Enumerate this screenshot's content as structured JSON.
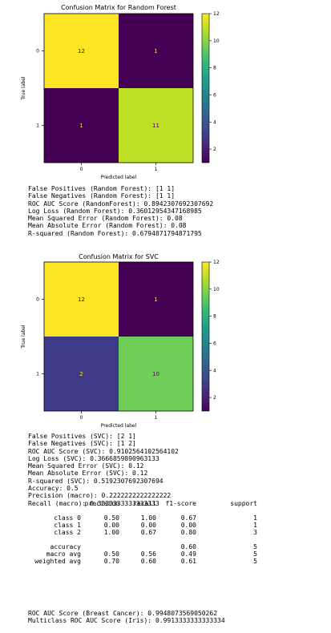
{
  "chart_data": [
    {
      "type": "heatmap",
      "title": "Confusion Matrix for Random Forest",
      "xlabel": "Predicted label",
      "ylabel": "True label",
      "x_ticks": [
        "0",
        "1"
      ],
      "y_ticks": [
        "0",
        "1"
      ],
      "matrix": [
        [
          12,
          1
        ],
        [
          1,
          11
        ]
      ],
      "cell_colors": [
        [
          "#fde725",
          "#440154"
        ],
        [
          "#440154",
          "#bddf26"
        ]
      ],
      "cell_text_colors": [
        [
          "#440154",
          "#fde725"
        ],
        [
          "#fde725",
          "#440154"
        ]
      ],
      "colorbar": {
        "min": 1,
        "max": 12,
        "ticks": [
          2,
          4,
          6,
          8,
          10,
          12
        ],
        "colormap": "viridis"
      }
    },
    {
      "type": "heatmap",
      "title": "Confusion Matrix for SVC",
      "xlabel": "Predicted label",
      "ylabel": "True label",
      "x_ticks": [
        "0",
        "1"
      ],
      "y_ticks": [
        "0",
        "1"
      ],
      "matrix": [
        [
          12,
          1
        ],
        [
          2,
          10
        ]
      ],
      "cell_colors": [
        [
          "#fde725",
          "#440154"
        ],
        [
          "#3e3a8a",
          "#6ece58"
        ]
      ],
      "cell_text_colors": [
        [
          "#440154",
          "#fde725"
        ],
        [
          "#fde725",
          "#440154"
        ]
      ],
      "colorbar": {
        "min": 1,
        "max": 12,
        "ticks": [
          2,
          4,
          6,
          8,
          10,
          12
        ],
        "colormap": "viridis"
      }
    }
  ],
  "output": {
    "rf_lines": [
      "False Positives (Random Forest): [1 1]",
      "False Negatives (Random Forest): [1 1]",
      "ROC AUC Score (RandomForest): 0.8942307692307692",
      "Log Loss (Random Forest): 0.36012954347168985",
      "Mean Squared Error (Random Forest): 0.08",
      "Mean Absolute Error (Random Forest): 0.08",
      "R-squared (Random Forest): 0.6794871794871795"
    ],
    "svc_lines": [
      "False Positives (SVC): [2 1]",
      "False Negatives (SVC): [1 2]",
      "ROC AUC Score (SVC): 0.9102564102564102",
      "Log Loss (SVC): 0.3666859890963133",
      "Mean Squared Error (SVC): 0.12",
      "Mean Absolute Error (SVC): 0.12",
      "R-squared (SVC): 0.5192307692307694",
      "Accuracy: 0.5",
      "Precision (macro): 0.2222222222222222",
      "Recall (macro): 0.3333333333333333"
    ],
    "report_header": [
      "",
      "precision",
      "recall",
      "f1-score",
      "support"
    ],
    "report_rows": [
      [
        "class 0",
        "0.50",
        "1.00",
        "0.67",
        "1"
      ],
      [
        "class 1",
        "0.00",
        "0.00",
        "0.00",
        "1"
      ],
      [
        "class 2",
        "1.00",
        "0.67",
        "0.80",
        "3"
      ],
      [
        "accuracy",
        "",
        "",
        "0.60",
        "5"
      ],
      [
        "macro avg",
        "0.50",
        "0.56",
        "0.49",
        "5"
      ],
      [
        "weighted avg",
        "0.70",
        "0.60",
        "0.61",
        "5"
      ]
    ],
    "footer_lines": [
      "ROC AUC Score (Breast Cancer): 0.9948073569050262",
      "Multiclass ROC AUC Score (Iris): 0.9913333333333334"
    ]
  }
}
